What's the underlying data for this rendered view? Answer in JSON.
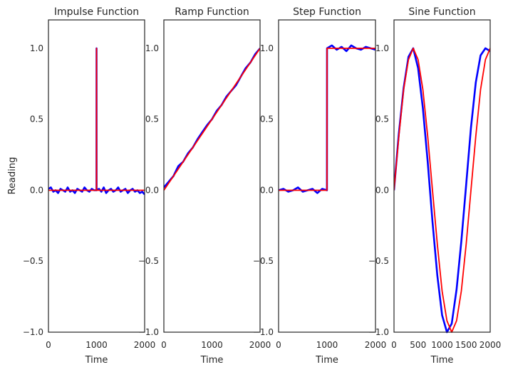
{
  "figure": {
    "background": "#ffffff",
    "ylabel": "Reading",
    "noisy_color": "#0000ff",
    "clean_color": "#ff0000"
  },
  "chart_data": [
    {
      "type": "line",
      "title": "Impulse Function",
      "xlabel": "Time",
      "ylabel": "Reading",
      "xlim": [
        0,
        2000
      ],
      "ylim": [
        -1.0,
        1.2
      ],
      "xticks": [
        "0",
        "1000",
        "2000"
      ],
      "yticks": [
        "−1.0",
        "−0.5",
        "0.0",
        "0.5",
        "1.0"
      ],
      "grid": false,
      "series": [
        {
          "kind": "noisy",
          "x": [
            0,
            50,
            100,
            150,
            200,
            250,
            300,
            350,
            400,
            450,
            500,
            550,
            600,
            650,
            700,
            750,
            800,
            850,
            900,
            950,
            999,
            1000,
            1001,
            1050,
            1100,
            1150,
            1200,
            1250,
            1300,
            1350,
            1400,
            1450,
            1500,
            1550,
            1600,
            1650,
            1700,
            1750,
            1800,
            1850,
            1900,
            1950,
            2000
          ],
          "y": [
            0.01,
            0.02,
            -0.01,
            0.0,
            -0.02,
            0.01,
            0.0,
            -0.01,
            0.02,
            -0.01,
            0.0,
            -0.02,
            0.01,
            0.0,
            -0.01,
            0.02,
            0.0,
            -0.01,
            0.01,
            0.0,
            0.0,
            1.0,
            0.0,
            0.01,
            -0.01,
            0.02,
            -0.02,
            0.0,
            0.01,
            -0.01,
            0.0,
            0.02,
            -0.01,
            0.0,
            0.01,
            -0.02,
            0.0,
            0.01,
            -0.01,
            0.0,
            -0.02,
            -0.01,
            -0.03
          ]
        },
        {
          "kind": "clean",
          "x": [
            0,
            999,
            1000,
            1001,
            2000
          ],
          "y": [
            0,
            0,
            1,
            0,
            0
          ]
        }
      ]
    },
    {
      "type": "line",
      "title": "Ramp Function",
      "xlabel": "Time",
      "xlim": [
        0,
        2000
      ],
      "ylim": [
        -1.0,
        1.2
      ],
      "xticks": [
        "0",
        "1000",
        "2000"
      ],
      "yticks": [
        "−1.0",
        "−0.5",
        "0.0",
        "0.5",
        "1.0"
      ],
      "grid": false,
      "series": [
        {
          "kind": "noisy",
          "x": [
            0,
            100,
            200,
            300,
            400,
            500,
            600,
            700,
            800,
            900,
            1000,
            1100,
            1200,
            1300,
            1400,
            1500,
            1600,
            1700,
            1800,
            1900,
            2000
          ],
          "y": [
            0.02,
            0.06,
            0.1,
            0.17,
            0.2,
            0.26,
            0.3,
            0.36,
            0.41,
            0.46,
            0.5,
            0.56,
            0.6,
            0.66,
            0.7,
            0.74,
            0.8,
            0.86,
            0.9,
            0.96,
            1.0
          ]
        },
        {
          "kind": "clean",
          "x": [
            0,
            2000
          ],
          "y": [
            0,
            1
          ]
        }
      ]
    },
    {
      "type": "line",
      "title": "Step Function",
      "xlabel": "Time",
      "xlim": [
        0,
        2000
      ],
      "ylim": [
        -1.0,
        1.2
      ],
      "xticks": [
        "0",
        "1000",
        "2000"
      ],
      "yticks": [
        "−1.0",
        "−0.5",
        "0.0",
        "0.5",
        "1.0"
      ],
      "grid": false,
      "series": [
        {
          "kind": "noisy",
          "x": [
            0,
            100,
            200,
            300,
            400,
            500,
            600,
            700,
            800,
            900,
            999,
            1000,
            1100,
            1200,
            1300,
            1400,
            1500,
            1600,
            1700,
            1800,
            1900,
            2000
          ],
          "y": [
            0.0,
            0.01,
            -0.01,
            0.0,
            0.02,
            -0.01,
            0.0,
            0.01,
            -0.02,
            0.01,
            0.0,
            1.0,
            1.02,
            0.99,
            1.01,
            0.98,
            1.02,
            1.0,
            0.99,
            1.01,
            1.0,
            0.99
          ]
        },
        {
          "kind": "clean",
          "x": [
            0,
            999,
            1000,
            2000
          ],
          "y": [
            0,
            0,
            1,
            1
          ]
        }
      ]
    },
    {
      "type": "line",
      "title": "Sine Function",
      "xlabel": "Time",
      "xlim": [
        0,
        2000
      ],
      "ylim": [
        -1.0,
        1.2
      ],
      "xticks": [
        "0",
        "500",
        "1000",
        "1500",
        "2000"
      ],
      "yticks": [
        "−1.0",
        "−0.5",
        "0.0",
        "0.5",
        "1.0"
      ],
      "grid": false,
      "series": [
        {
          "kind": "noisy",
          "x": [
            0,
            100,
            200,
            300,
            400,
            500,
            600,
            700,
            800,
            900,
            1000,
            1100,
            1200,
            1300,
            1400,
            1500,
            1600,
            1700,
            1800,
            1900,
            2000
          ],
          "y": [
            0.0,
            0.4,
            0.72,
            0.94,
            1.0,
            0.86,
            0.58,
            0.2,
            -0.22,
            -0.6,
            -0.88,
            -1.0,
            -0.94,
            -0.7,
            -0.36,
            0.04,
            0.44,
            0.76,
            0.95,
            1.0,
            0.98
          ]
        },
        {
          "kind": "clean",
          "x": [
            0,
            100,
            200,
            300,
            400,
            500,
            600,
            700,
            800,
            900,
            1000,
            1100,
            1200,
            1300,
            1400,
            1500,
            1600,
            1700,
            1800,
            1900,
            2000
          ],
          "y": [
            0.0,
            0.38,
            0.71,
            0.92,
            1.0,
            0.92,
            0.71,
            0.38,
            0.0,
            -0.38,
            -0.71,
            -0.92,
            -1.0,
            -0.92,
            -0.71,
            -0.38,
            0.0,
            0.38,
            0.71,
            0.92,
            1.0
          ]
        }
      ]
    }
  ]
}
